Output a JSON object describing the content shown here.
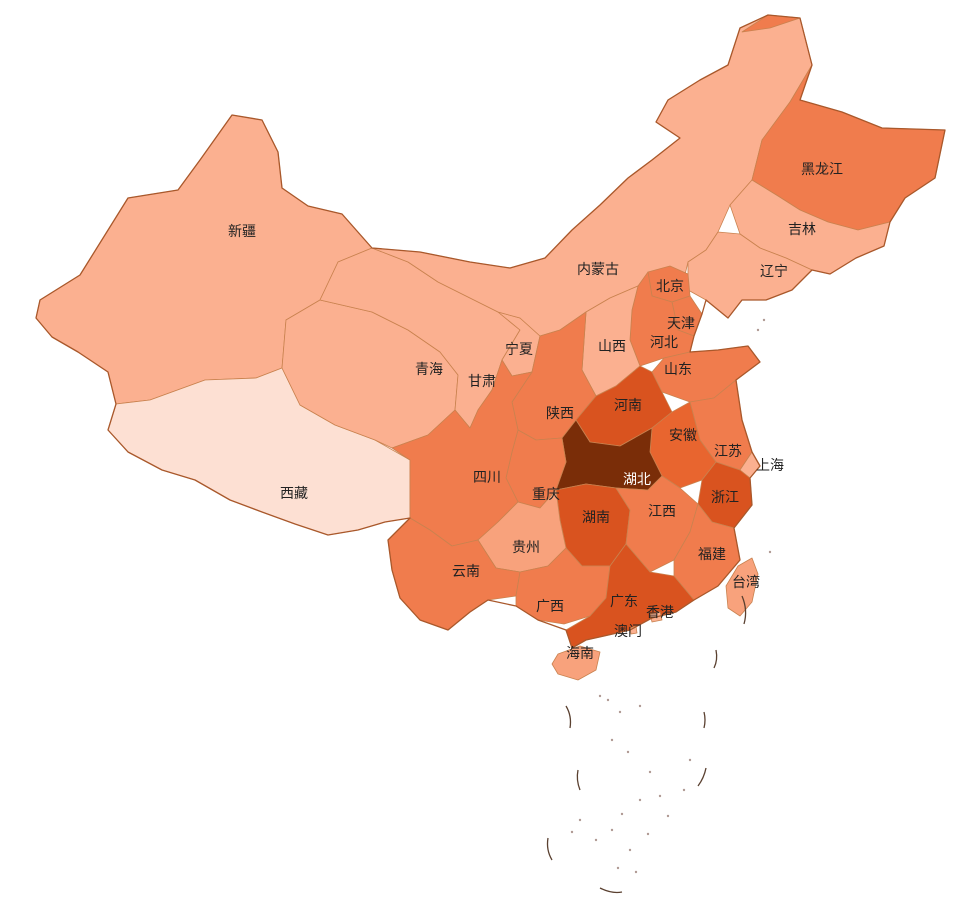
{
  "palette": {
    "very_light": "#fde0d3",
    "light": "#fbb090",
    "medium_light": "#f8a27c",
    "medium": "#f07c4d",
    "strong": "#e8652f",
    "darker": "#d9531f",
    "darkest": "#7a2d08"
  },
  "provinces": [
    {
      "id": "heilongjiang",
      "name": "黑龙江",
      "level": "medium"
    },
    {
      "id": "jilin",
      "name": "吉林",
      "level": "light"
    },
    {
      "id": "liaoning",
      "name": "辽宁",
      "level": "light"
    },
    {
      "id": "neimenggu",
      "name": "内蒙古",
      "level": "light"
    },
    {
      "id": "xinjiang",
      "name": "新疆",
      "level": "light"
    },
    {
      "id": "xizang",
      "name": "西藏",
      "level": "very_light"
    },
    {
      "id": "qinghai",
      "name": "青海",
      "level": "light"
    },
    {
      "id": "gansu",
      "name": "甘肃",
      "level": "light"
    },
    {
      "id": "ningxia",
      "name": "宁夏",
      "level": "light"
    },
    {
      "id": "shaanxi",
      "name": "陕西",
      "level": "medium"
    },
    {
      "id": "shanxi",
      "name": "山西",
      "level": "light"
    },
    {
      "id": "beijing",
      "name": "北京",
      "level": "medium"
    },
    {
      "id": "tianjin",
      "name": "天津",
      "level": "medium"
    },
    {
      "id": "hebei",
      "name": "河北",
      "level": "medium"
    },
    {
      "id": "shandong",
      "name": "山东",
      "level": "medium"
    },
    {
      "id": "henan",
      "name": "河南",
      "level": "darker"
    },
    {
      "id": "anhui",
      "name": "安徽",
      "level": "strong"
    },
    {
      "id": "jiangsu",
      "name": "江苏",
      "level": "medium"
    },
    {
      "id": "shanghai",
      "name": "上海",
      "level": "light"
    },
    {
      "id": "zhejiang",
      "name": "浙江",
      "level": "darker"
    },
    {
      "id": "hubei",
      "name": "湖北",
      "level": "darkest"
    },
    {
      "id": "hunan",
      "name": "湖南",
      "level": "darker"
    },
    {
      "id": "jiangxi",
      "name": "江西",
      "level": "medium"
    },
    {
      "id": "fujian",
      "name": "福建",
      "level": "medium"
    },
    {
      "id": "sichuan",
      "name": "四川",
      "level": "medium"
    },
    {
      "id": "chongqing",
      "name": "重庆",
      "level": "medium"
    },
    {
      "id": "guizhou",
      "name": "贵州",
      "level": "medium_light"
    },
    {
      "id": "yunnan",
      "name": "云南",
      "level": "medium"
    },
    {
      "id": "guangxi",
      "name": "广西",
      "level": "medium"
    },
    {
      "id": "guangdong",
      "name": "广东",
      "level": "darker"
    },
    {
      "id": "hainan",
      "name": "海南",
      "level": "medium_light"
    },
    {
      "id": "taiwan",
      "name": "台湾",
      "level": "medium_light"
    },
    {
      "id": "hongkong",
      "name": "香港",
      "level": "light"
    },
    {
      "id": "macau",
      "name": "澳门",
      "level": "light"
    }
  ]
}
